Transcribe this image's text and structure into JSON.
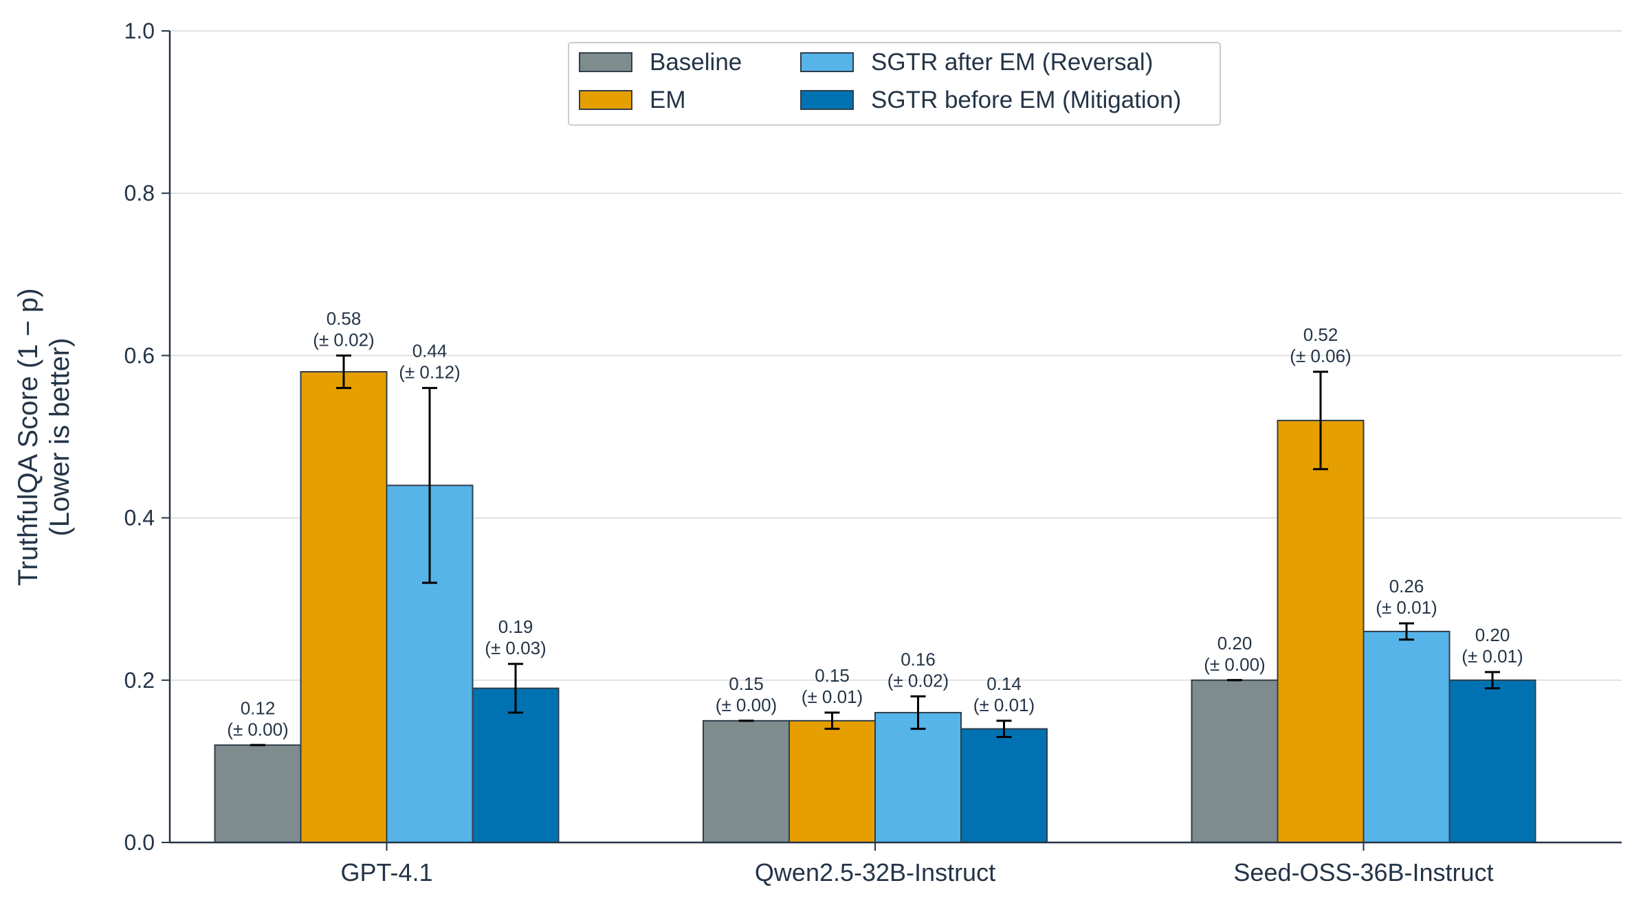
{
  "chart_data": {
    "type": "bar",
    "title": "",
    "ylabel_lines": [
      "TruthfulQA Score (1 − p)",
      "(Lower is better)"
    ],
    "xlabel": "",
    "ylim": [
      0,
      1.0
    ],
    "yticks": [
      "0.0",
      "0.2",
      "0.4",
      "0.6",
      "0.8",
      "1.0"
    ],
    "ytick_values": [
      0,
      0.2,
      0.4,
      0.6,
      0.8,
      1.0
    ],
    "grid": true,
    "legend_position": "top-center",
    "categories": [
      "GPT-4.1",
      "Qwen2.5-32B-Instruct",
      "Seed-OSS-36B-Instruct"
    ],
    "series": [
      {
        "name": "Baseline",
        "color": "#7f8c8d",
        "values": [
          0.12,
          0.15,
          0.2
        ],
        "errors": [
          0.0,
          0.0,
          0.0
        ],
        "value_labels": [
          "0.12",
          "0.15",
          "0.20"
        ],
        "error_labels": [
          "(± 0.00)",
          "(± 0.00)",
          "(± 0.00)"
        ]
      },
      {
        "name": "EM",
        "color": "#e69f00",
        "values": [
          0.58,
          0.15,
          0.52
        ],
        "errors": [
          0.02,
          0.01,
          0.06
        ],
        "value_labels": [
          "0.58",
          "0.15",
          "0.52"
        ],
        "error_labels": [
          "(± 0.02)",
          "(± 0.01)",
          "(± 0.06)"
        ]
      },
      {
        "name": "SGTR after EM (Reversal)",
        "color": "#56b4e9",
        "values": [
          0.44,
          0.16,
          0.26
        ],
        "errors": [
          0.12,
          0.02,
          0.01
        ],
        "value_labels": [
          "0.44",
          "0.16",
          "0.26"
        ],
        "error_labels": [
          "(± 0.12)",
          "(± 0.02)",
          "(± 0.01)"
        ]
      },
      {
        "name": "SGTR before EM (Mitigation)",
        "color": "#0072b2",
        "values": [
          0.19,
          0.14,
          0.2
        ],
        "errors": [
          0.03,
          0.01,
          0.01
        ],
        "value_labels": [
          "0.19",
          "0.14",
          "0.20"
        ],
        "error_labels": [
          "(± 0.03)",
          "(± 0.01)",
          "(± 0.01)"
        ]
      }
    ]
  }
}
